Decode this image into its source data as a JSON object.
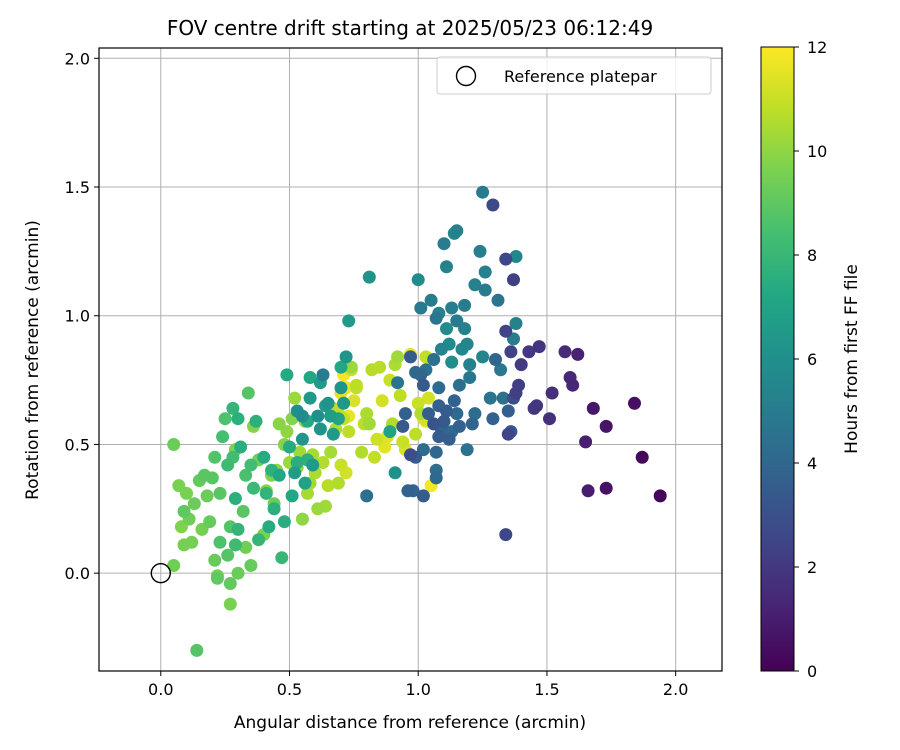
{
  "chart_data": {
    "type": "scatter",
    "title": "FOV centre drift starting at 2025/05/23 06:12:49",
    "xlabel": "Angular distance from reference (arcmin)",
    "ylabel": "Rotation from reference (arcmin)",
    "xlim": [
      -0.24,
      2.18
    ],
    "ylim": [
      -0.38,
      2.04
    ],
    "xticks": [
      0.0,
      0.5,
      1.0,
      1.5,
      2.0
    ],
    "yticks": [
      0.0,
      0.5,
      1.0,
      1.5,
      2.0
    ],
    "xtick_labels": [
      "0.0",
      "0.5",
      "1.0",
      "1.5",
      "2.0"
    ],
    "ytick_labels": [
      "0.0",
      "0.5",
      "1.0",
      "1.5",
      "2.0"
    ],
    "grid": true,
    "legend": {
      "location": "top-right",
      "entries": [
        "Reference platepar"
      ]
    },
    "reference_point": {
      "x": 0.0,
      "y": 0.0,
      "label": "Reference platepar"
    },
    "colorbar": {
      "label": "Hours from first FF file",
      "colormap": "viridis",
      "range": [
        0,
        12
      ],
      "ticks": [
        0,
        2,
        4,
        6,
        8,
        10,
        12
      ],
      "tick_labels": [
        "0",
        "2",
        "4",
        "6",
        "8",
        "10",
        "12"
      ]
    },
    "points": [
      [
        1.94,
        0.3,
        0.2
      ],
      [
        1.87,
        0.45,
        0.3
      ],
      [
        1.84,
        0.66,
        0.5
      ],
      [
        1.73,
        0.33,
        0.6
      ],
      [
        1.73,
        0.57,
        0.7
      ],
      [
        1.68,
        0.64,
        0.8
      ],
      [
        1.66,
        0.32,
        1.0
      ],
      [
        1.65,
        0.51,
        1.1
      ],
      [
        1.62,
        0.85,
        1.2
      ],
      [
        1.6,
        0.73,
        1.3
      ],
      [
        1.59,
        0.76,
        1.4
      ],
      [
        1.57,
        0.86,
        1.5
      ],
      [
        1.52,
        0.7,
        1.6
      ],
      [
        1.51,
        0.6,
        1.7
      ],
      [
        1.47,
        0.88,
        1.8
      ],
      [
        1.46,
        0.65,
        1.9
      ],
      [
        1.45,
        0.64,
        2.0
      ],
      [
        1.43,
        0.86,
        2.0
      ],
      [
        1.4,
        0.81,
        2.1
      ],
      [
        1.39,
        0.73,
        2.2
      ],
      [
        1.38,
        0.7,
        2.3
      ],
      [
        1.37,
        1.14,
        2.3
      ],
      [
        1.36,
        0.86,
        2.4
      ],
      [
        1.34,
        0.94,
        2.4
      ],
      [
        1.35,
        0.54,
        2.5
      ],
      [
        1.34,
        0.15,
        2.6
      ],
      [
        1.34,
        1.22,
        2.6
      ],
      [
        1.29,
        1.43,
        2.7
      ],
      [
        1.37,
        0.68,
        2.8
      ],
      [
        1.38,
        1.23,
        5.5
      ],
      [
        1.38,
        0.97,
        5.3
      ],
      [
        1.37,
        0.91,
        5.0
      ],
      [
        1.36,
        0.55,
        3.3
      ],
      [
        1.35,
        0.63,
        3.6
      ],
      [
        1.33,
        0.68,
        4.5
      ],
      [
        1.32,
        0.79,
        4.8
      ],
      [
        1.31,
        1.06,
        4.6
      ],
      [
        1.3,
        0.83,
        3.9
      ],
      [
        1.29,
        0.6,
        3.8
      ],
      [
        1.28,
        0.68,
        4.6
      ],
      [
        1.26,
        1.17,
        5.2
      ],
      [
        1.26,
        1.1,
        5.0
      ],
      [
        1.25,
        0.84,
        5.5
      ],
      [
        1.25,
        1.48,
        4.9
      ],
      [
        1.24,
        1.25,
        5.1
      ],
      [
        1.22,
        1.12,
        5.2
      ],
      [
        1.22,
        0.62,
        4.3
      ],
      [
        1.21,
        0.58,
        3.9
      ],
      [
        1.2,
        0.76,
        4.7
      ],
      [
        1.2,
        0.81,
        5.3
      ],
      [
        1.19,
        0.89,
        5.5
      ],
      [
        1.19,
        0.48,
        4.5
      ],
      [
        1.18,
        1.04,
        5.0
      ],
      [
        1.18,
        0.95,
        5.3
      ],
      [
        1.17,
        0.87,
        5.6
      ],
      [
        1.16,
        0.57,
        3.8
      ],
      [
        1.16,
        0.73,
        4.4
      ],
      [
        1.15,
        0.62,
        4.1
      ],
      [
        1.15,
        0.98,
        4.9
      ],
      [
        1.15,
        1.33,
        5.3
      ],
      [
        1.14,
        0.67,
        3.8
      ],
      [
        1.14,
        1.32,
        5.6
      ],
      [
        1.13,
        0.82,
        5.9
      ],
      [
        1.13,
        0.55,
        4.2
      ],
      [
        1.13,
        1.03,
        5.1
      ],
      [
        1.12,
        0.52,
        3.6
      ],
      [
        1.12,
        0.89,
        5.7
      ],
      [
        1.11,
        0.63,
        3.5
      ],
      [
        1.11,
        0.95,
        5.8
      ],
      [
        1.11,
        1.19,
        5.3
      ],
      [
        1.1,
        0.59,
        3.4
      ],
      [
        1.1,
        1.28,
        5.0
      ],
      [
        1.09,
        0.87,
        5.4
      ],
      [
        1.09,
        0.56,
        3.9
      ],
      [
        1.08,
        0.65,
        3.7
      ],
      [
        1.08,
        1.01,
        5.2
      ],
      [
        1.08,
        0.72,
        4.2
      ],
      [
        1.08,
        0.53,
        3.5
      ],
      [
        1.07,
        0.47,
        4.0
      ],
      [
        1.07,
        0.99,
        4.7
      ],
      [
        1.07,
        0.4,
        4.3
      ],
      [
        1.07,
        0.37,
        4.1
      ],
      [
        1.06,
        0.58,
        3.2
      ],
      [
        1.06,
        0.83,
        4.4
      ],
      [
        1.05,
        1.06,
        5.0
      ],
      [
        1.04,
        0.62,
        3.6
      ],
      [
        1.03,
        0.79,
        4.5
      ],
      [
        1.02,
        0.73,
        3.4
      ],
      [
        1.02,
        0.48,
        4.2
      ],
      [
        1.02,
        0.3,
        3.5
      ],
      [
        1.01,
        0.77,
        4.0
      ],
      [
        1.01,
        1.03,
        4.9
      ],
      [
        1.0,
        1.14,
        5.8
      ],
      [
        0.99,
        0.45,
        3.5
      ],
      [
        0.99,
        0.78,
        4.1
      ],
      [
        0.98,
        0.32,
        4.0
      ],
      [
        0.97,
        0.84,
        3.5
      ],
      [
        0.97,
        0.46,
        2.9
      ],
      [
        0.96,
        0.32,
        3.8
      ],
      [
        0.95,
        0.62,
        3.7
      ],
      [
        0.94,
        0.57,
        3.4
      ],
      [
        0.92,
        0.74,
        4.6
      ],
      [
        0.91,
        0.39,
        6.0
      ],
      [
        0.89,
        0.55,
        7.0
      ],
      [
        0.81,
        1.15,
        6.2
      ],
      [
        0.8,
        0.3,
        4.4
      ],
      [
        0.63,
        0.77,
        5.0
      ],
      [
        0.73,
        0.98,
        6.5
      ],
      [
        0.72,
        0.84,
        6.2
      ],
      [
        0.71,
        0.66,
        6.3
      ],
      [
        0.7,
        0.72,
        6.2
      ],
      [
        0.7,
        0.8,
        7.2
      ],
      [
        0.69,
        0.6,
        6.9
      ],
      [
        0.67,
        0.54,
        6.5
      ],
      [
        0.66,
        0.61,
        6.7
      ],
      [
        0.65,
        0.66,
        6.2
      ],
      [
        0.64,
        0.65,
        6.6
      ],
      [
        0.62,
        0.56,
        6.2
      ],
      [
        0.62,
        0.74,
        6.5
      ],
      [
        0.61,
        0.61,
        6.0
      ],
      [
        0.59,
        0.42,
        6.5
      ],
      [
        0.58,
        0.68,
        6.4
      ],
      [
        0.58,
        0.76,
        7.2
      ],
      [
        0.57,
        0.59,
        7.3
      ],
      [
        0.57,
        0.44,
        7.6
      ],
      [
        0.56,
        0.35,
        6.9
      ],
      [
        0.55,
        0.52,
        6.3
      ],
      [
        0.55,
        0.61,
        5.8
      ],
      [
        0.53,
        0.63,
        6.0
      ],
      [
        0.53,
        0.43,
        7.5
      ],
      [
        0.52,
        0.39,
        6.7
      ],
      [
        0.51,
        0.3,
        7.2
      ],
      [
        0.5,
        0.49,
        7.4
      ],
      [
        0.49,
        0.77,
        7.3
      ],
      [
        0.48,
        0.2,
        7.5
      ],
      [
        0.47,
        0.06,
        8.0
      ],
      [
        0.46,
        0.38,
        7.2
      ],
      [
        0.44,
        0.25,
        7.6
      ],
      [
        0.43,
        0.4,
        7.7
      ],
      [
        0.42,
        0.18,
        7.4
      ],
      [
        0.41,
        0.31,
        7.8
      ],
      [
        0.4,
        0.45,
        7.4
      ],
      [
        0.38,
        0.13,
        7.9
      ],
      [
        0.37,
        0.59,
        7.6
      ],
      [
        0.36,
        0.33,
        8.1
      ],
      [
        0.35,
        0.42,
        8.3
      ],
      [
        0.34,
        0.7,
        8.8
      ],
      [
        0.33,
        0.38,
        8.5
      ],
      [
        0.32,
        0.24,
        8.9
      ],
      [
        0.31,
        0.49,
        7.5
      ],
      [
        0.3,
        0.6,
        7.6
      ],
      [
        0.3,
        0.17,
        7.9
      ],
      [
        0.29,
        0.29,
        7.6
      ],
      [
        0.29,
        0.11,
        8.2
      ],
      [
        0.28,
        0.45,
        8.3
      ],
      [
        0.28,
        0.64,
        7.9
      ],
      [
        0.27,
        0.18,
        8.7
      ],
      [
        0.26,
        0.07,
        8.8
      ],
      [
        0.26,
        0.42,
        8.2
      ],
      [
        0.25,
        0.6,
        8.6
      ],
      [
        0.24,
        0.53,
        8.4
      ],
      [
        0.23,
        0.31,
        8.9
      ],
      [
        0.23,
        0.12,
        8.6
      ],
      [
        0.22,
        -0.02,
        9.0
      ],
      [
        0.21,
        0.45,
        8.7
      ],
      [
        0.21,
        0.05,
        9.2
      ],
      [
        0.2,
        0.37,
        8.9
      ],
      [
        0.19,
        0.2,
        9.2
      ],
      [
        0.18,
        0.3,
        9.3
      ],
      [
        0.17,
        0.38,
        8.9
      ],
      [
        0.16,
        0.17,
        9.5
      ],
      [
        0.15,
        0.36,
        9.1
      ],
      [
        0.14,
        -0.3,
        8.8
      ],
      [
        0.13,
        0.27,
        9.3
      ],
      [
        0.12,
        0.12,
        9.5
      ],
      [
        0.11,
        0.21,
        9.4
      ],
      [
        0.1,
        0.31,
        9.6
      ],
      [
        0.09,
        0.24,
        9.0
      ],
      [
        0.09,
        0.11,
        9.5
      ],
      [
        0.08,
        0.18,
        9.7
      ],
      [
        0.07,
        0.34,
        9.6
      ],
      [
        0.05,
        0.03,
        9.4
      ],
      [
        0.05,
        0.5,
        9.3
      ],
      [
        0.27,
        -0.04,
        9.1
      ],
      [
        0.27,
        -0.12,
        9.6
      ],
      [
        0.22,
        -0.01,
        9.5
      ],
      [
        0.3,
        0.0,
        9.3
      ],
      [
        0.33,
        0.1,
        9.4
      ],
      [
        0.29,
        0.48,
        9.7
      ],
      [
        0.35,
        0.03,
        9.2
      ],
      [
        0.36,
        0.57,
        9.8
      ],
      [
        0.38,
        0.44,
        9.4
      ],
      [
        0.4,
        0.15,
        9.6
      ],
      [
        0.41,
        0.32,
        9.9
      ],
      [
        0.43,
        0.38,
        9.7
      ],
      [
        0.44,
        0.27,
        9.3
      ],
      [
        0.45,
        0.4,
        9.9
      ],
      [
        0.46,
        0.58,
        9.9
      ],
      [
        0.48,
        0.5,
        9.8
      ],
      [
        0.49,
        0.55,
        10.0
      ],
      [
        0.5,
        0.43,
        10.2
      ],
      [
        0.51,
        0.6,
        9.8
      ],
      [
        0.52,
        0.68,
        10.2
      ],
      [
        0.53,
        0.41,
        10.1
      ],
      [
        0.54,
        0.47,
        10.3
      ],
      [
        0.55,
        0.21,
        10.0
      ],
      [
        0.56,
        0.59,
        10.1
      ],
      [
        0.57,
        0.31,
        10.4
      ],
      [
        0.58,
        0.35,
        10.3
      ],
      [
        0.59,
        0.46,
        10.4
      ],
      [
        0.6,
        0.39,
        10.5
      ],
      [
        0.61,
        0.25,
        10.2
      ],
      [
        0.63,
        0.43,
        10.6
      ],
      [
        0.64,
        0.26,
        10.3
      ],
      [
        0.65,
        0.34,
        10.7
      ],
      [
        0.66,
        0.47,
        10.4
      ],
      [
        0.67,
        0.64,
        10.8
      ],
      [
        0.68,
        0.56,
        10.5
      ],
      [
        0.69,
        0.35,
        10.6
      ],
      [
        0.7,
        0.42,
        11.0
      ],
      [
        0.71,
        0.6,
        10.9
      ],
      [
        0.72,
        0.39,
        11.2
      ],
      [
        0.73,
        0.55,
        10.8
      ],
      [
        0.74,
        0.79,
        11.1
      ],
      [
        0.75,
        0.67,
        11.3
      ],
      [
        0.76,
        0.72,
        10.9
      ],
      [
        0.78,
        0.47,
        10.6
      ],
      [
        0.79,
        0.58,
        10.8
      ],
      [
        0.8,
        0.62,
        10.5
      ],
      [
        0.81,
        0.58,
        10.3
      ],
      [
        0.82,
        0.79,
        10.7
      ],
      [
        0.83,
        0.45,
        10.9
      ],
      [
        0.84,
        0.52,
        11.1
      ],
      [
        0.85,
        0.8,
        10.7
      ],
      [
        0.86,
        0.67,
        11.2
      ],
      [
        0.87,
        0.49,
        11.5
      ],
      [
        0.88,
        0.53,
        11.4
      ],
      [
        0.89,
        0.75,
        11.0
      ],
      [
        0.9,
        0.58,
        10.6
      ],
      [
        0.91,
        0.81,
        10.5
      ],
      [
        0.92,
        0.84,
        10.3
      ],
      [
        0.93,
        0.69,
        10.8
      ],
      [
        0.94,
        0.51,
        11.0
      ],
      [
        0.95,
        0.48,
        11.3
      ],
      [
        0.97,
        0.85,
        11.6
      ],
      [
        0.99,
        0.54,
        10.8
      ],
      [
        1.0,
        0.66,
        11.0
      ],
      [
        1.01,
        0.62,
        10.6
      ],
      [
        1.02,
        0.6,
        11.3
      ],
      [
        1.03,
        0.84,
        10.9
      ],
      [
        1.04,
        0.68,
        11.2
      ],
      [
        1.05,
        0.34,
        11.8
      ],
      [
        1.03,
        0.59,
        11.5
      ],
      [
        0.74,
        0.8,
        10.2
      ],
      [
        0.76,
        0.73,
        10.8
      ],
      [
        0.72,
        0.72,
        11.7
      ],
      [
        0.71,
        0.77,
        11.9
      ],
      [
        0.73,
        0.61,
        11.6
      ],
      [
        0.7,
        0.7,
        11.5
      ],
      [
        0.69,
        0.62,
        10.9
      ]
    ]
  }
}
